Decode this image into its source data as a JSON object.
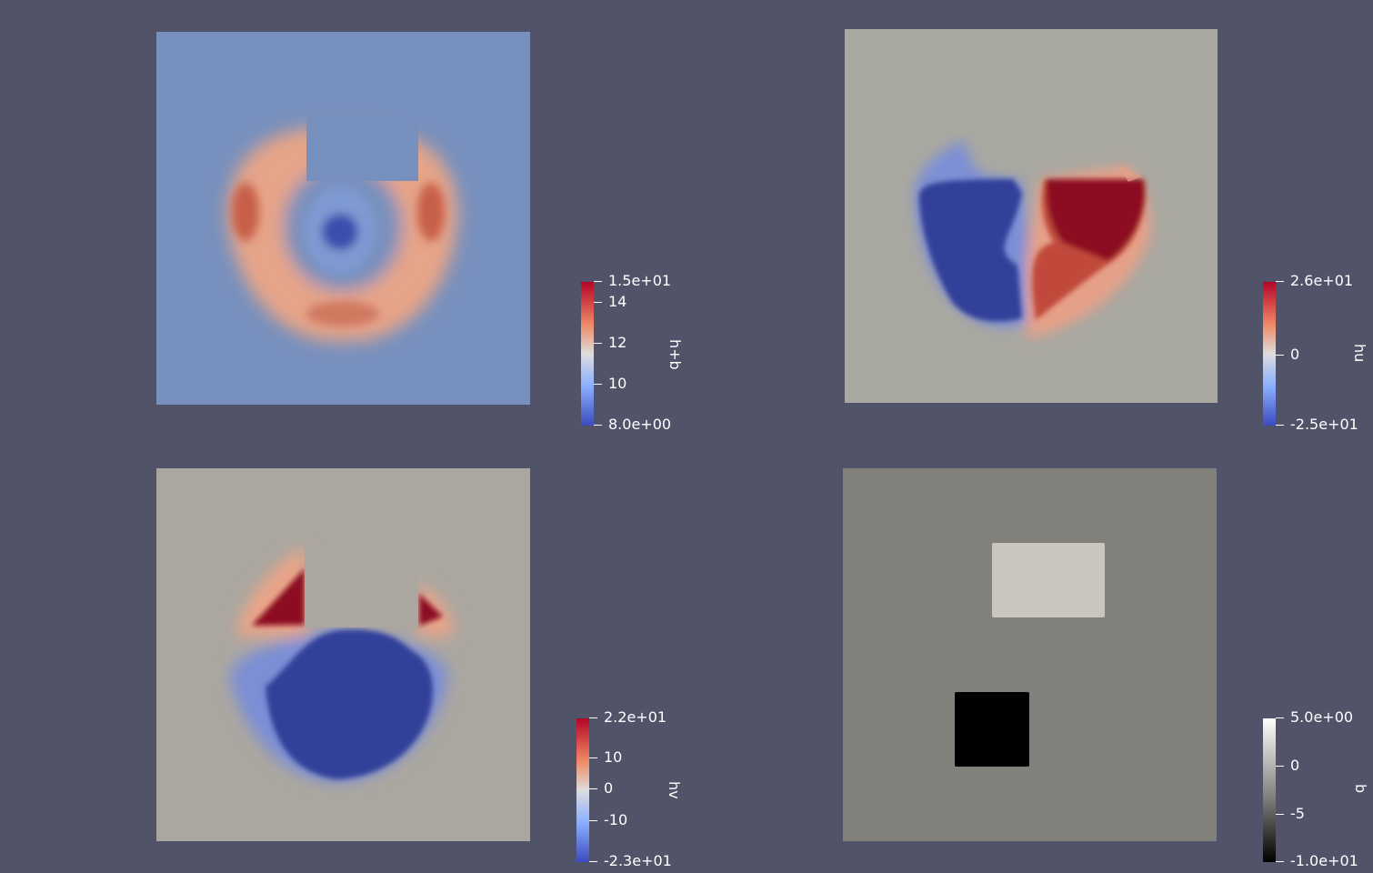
{
  "views": [
    {
      "id": "h_plus_b",
      "field_label": "h+b",
      "colormap": "cool-to-warm",
      "background_color": "#7890bd",
      "legend": {
        "top_label": "1.5e+01",
        "bottom_label": "8.0e+00",
        "ticks": [
          "14",
          "12",
          "10"
        ]
      }
    },
    {
      "id": "hu",
      "field_label": "hu",
      "colormap": "cool-to-warm",
      "background_color": "#a9a8a1",
      "legend": {
        "top_label": "2.6e+01",
        "bottom_label": "-2.5e+01",
        "ticks": [
          "0"
        ]
      }
    },
    {
      "id": "hv",
      "field_label": "hv",
      "colormap": "cool-to-warm",
      "background_color": "#aba7a0",
      "legend": {
        "top_label": "2.2e+01",
        "bottom_label": "-2.3e+01",
        "ticks": [
          "10",
          "0",
          "-10"
        ]
      }
    },
    {
      "id": "b",
      "field_label": "b",
      "colormap": "grayscale",
      "background_color": "#82807a",
      "legend": {
        "top_label": "5.0e+00",
        "bottom_label": "-1.0e+01",
        "ticks": [
          "0",
          "-5"
        ]
      }
    }
  ],
  "colors": {
    "window_background": "#515369",
    "deep_red": "#8c0c23",
    "mid_red": "#c44a3d",
    "light_orange": "#e6987a",
    "deep_blue": "#303f99",
    "mid_blue": "#5c76cf"
  }
}
